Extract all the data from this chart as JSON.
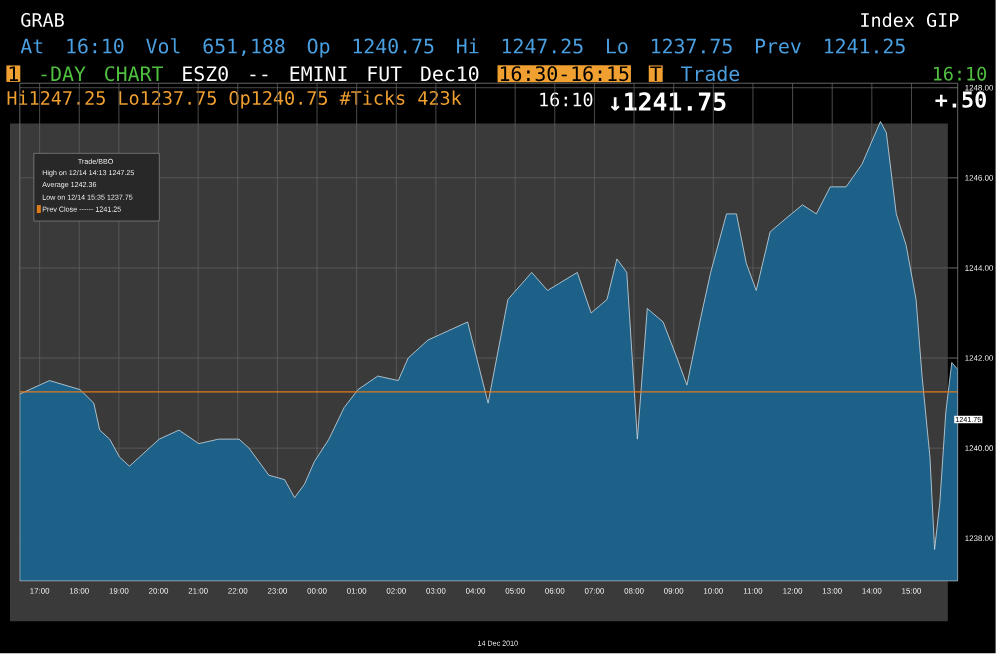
{
  "chart_data": {
    "type": "area",
    "x": [
      "2010-12-13T16:30",
      "2010-12-13T17:15",
      "2010-12-13T18:01",
      "2010-12-13T18:22",
      "2010-12-13T18:31",
      "2010-12-13T18:46",
      "2010-12-13T19:01",
      "2010-12-13T19:16",
      "2010-12-13T19:31",
      "2010-12-13T20:01",
      "2010-12-13T20:31",
      "2010-12-13T21:01",
      "2010-12-13T21:31",
      "2010-12-13T22:02",
      "2010-12-13T22:17",
      "2010-12-13T22:32",
      "2010-12-13T22:47",
      "2010-12-13T23:11",
      "2010-12-13T23:26",
      "2010-12-13T23:41",
      "2010-12-13T23:56",
      "2010-12-14T00:18",
      "2010-12-14T00:41",
      "2010-12-14T01:02",
      "2010-12-14T01:32",
      "2010-12-14T02:03",
      "2010-12-14T02:18",
      "2010-12-14T02:48",
      "2010-12-14T03:18",
      "2010-12-14T03:48",
      "2010-12-14T04:19",
      "2010-12-14T04:49",
      "2010-12-14T05:25",
      "2010-12-14T05:49",
      "2010-12-14T06:34",
      "2010-12-14T06:55",
      "2010-12-14T07:19",
      "2010-12-14T07:34",
      "2010-12-14T07:49",
      "2010-12-14T08:05",
      "2010-12-14T08:20",
      "2010-12-14T08:44",
      "2010-12-14T09:05",
      "2010-12-14T09:20",
      "2010-12-14T09:41",
      "2010-12-14T09:56",
      "2010-12-14T10:20",
      "2010-12-14T10:35",
      "2010-12-14T10:50",
      "2010-12-14T11:05",
      "2010-12-14T11:26",
      "2010-12-14T11:50",
      "2010-12-14T12:15",
      "2010-12-14T12:36",
      "2010-12-14T12:57",
      "2010-12-14T13:21",
      "2010-12-14T13:45",
      "2010-12-14T14:13",
      "2010-12-14T14:22",
      "2010-12-14T14:37",
      "2010-12-14T14:52",
      "2010-12-14T15:07",
      "2010-12-14T15:16",
      "2010-12-14T15:28",
      "2010-12-14T15:35",
      "2010-12-14T15:43",
      "2010-12-14T15:52",
      "2010-12-14T16:01",
      "2010-12-14T16:10"
    ],
    "series": [
      {
        "color": "#1d6088",
        "values": [
          1241.2,
          1241.5,
          1241.3,
          1241.0,
          1240.4,
          1240.2,
          1239.8,
          1239.6,
          1239.8,
          1240.2,
          1240.4,
          1240.1,
          1240.2,
          1240.2,
          1240.0,
          1239.7,
          1239.4,
          1239.3,
          1238.9,
          1239.2,
          1239.7,
          1240.2,
          1240.9,
          1241.3,
          1241.6,
          1241.5,
          1242.0,
          1242.4,
          1242.6,
          1242.8,
          1241.0,
          1243.3,
          1243.9,
          1243.5,
          1243.9,
          1243.0,
          1243.3,
          1244.2,
          1243.9,
          1240.2,
          1243.1,
          1242.8,
          1242.0,
          1241.4,
          1242.9,
          1243.9,
          1245.2,
          1245.2,
          1244.1,
          1243.5,
          1244.8,
          1245.1,
          1245.4,
          1245.2,
          1245.8,
          1245.8,
          1246.3,
          1247.25,
          1247.0,
          1245.2,
          1244.5,
          1243.3,
          1241.6,
          1239.8,
          1237.75,
          1238.8,
          1240.8,
          1241.9,
          1241.75
        ]
      }
    ],
    "xlim": [
      "2010-12-13T16:30",
      "2010-12-14T16:10"
    ],
    "xticks": [
      {
        "value": "2010-12-13T17:00",
        "label": "17:00"
      },
      {
        "value": "2010-12-13T18:00",
        "label": "18:00"
      },
      {
        "value": "2010-12-13T19:00",
        "label": "19:00"
      },
      {
        "value": "2010-12-13T20:00",
        "label": "20:00"
      },
      {
        "value": "2010-12-13T21:00",
        "label": "21:00"
      },
      {
        "value": "2010-12-13T22:00",
        "label": "22:00"
      },
      {
        "value": "2010-12-13T23:00",
        "label": "23:00"
      },
      {
        "value": "2010-12-14T00:00",
        "label": "00:00"
      },
      {
        "value": "2010-12-14T01:00",
        "label": "01:00"
      },
      {
        "value": "2010-12-14T02:00",
        "label": "02:00"
      },
      {
        "value": "2010-12-14T03:00",
        "label": "03:00"
      },
      {
        "value": "2010-12-14T04:00",
        "label": "04:00"
      },
      {
        "value": "2010-12-14T05:00",
        "label": "05:00"
      },
      {
        "value": "2010-12-14T06:00",
        "label": "06:00"
      },
      {
        "value": "2010-12-14T07:00",
        "label": "07:00"
      },
      {
        "value": "2010-12-14T08:00",
        "label": "08:00"
      },
      {
        "value": "2010-12-14T09:00",
        "label": "09:00"
      },
      {
        "value": "2010-12-14T10:00",
        "label": "10:00"
      },
      {
        "value": "2010-12-14T11:00",
        "label": "11:00"
      },
      {
        "value": "2010-12-14T12:00",
        "label": "12:00"
      },
      {
        "value": "2010-12-14T13:00",
        "label": "13:00"
      },
      {
        "value": "2010-12-14T14:00",
        "label": "14:00"
      },
      {
        "value": "2010-12-14T15:00",
        "label": "15:00"
      }
    ],
    "ylim": [
      1237.05,
      1248.1
    ],
    "yticks": [
      {
        "value": 1238,
        "label": "1238.00"
      },
      {
        "value": 1240,
        "label": "1240.00"
      },
      {
        "value": 1242,
        "label": "1242.00"
      },
      {
        "value": 1244,
        "label": "1244.00"
      },
      {
        "value": 1246,
        "label": "1246.00"
      },
      {
        "value": 1248,
        "label": "1248.00"
      }
    ],
    "grid": true,
    "ref_lines": [
      {
        "axis": "y",
        "value": 1241.25,
        "label": "Prev Close ------ 1241.25",
        "color": "#e07b1a"
      }
    ],
    "annotations": [
      "GRAB",
      "Index GIP",
      "At 16:10 Vol 651,188 Op 1240.75   Hi 1247.25   Lo 1237.75   Prev 1241.25",
      "1",
      "-DAY CHART",
      "ESZ0 -- EMINI FUT  Dec10",
      "16:30-16:15",
      "T",
      "Trade",
      "16:10",
      "Hi1247.25 Lo1237.75 Op1240.75 #Ticks 423k",
      "16:10",
      "↓1241.75",
      "+.50",
      "Trade/BBO",
      "High on 12/14 14:13 1247.25",
      "Average 1242.36",
      "Low on 12/14 15:35 1237.75",
      "14 Dec 2010",
      "1241.75"
    ]
  }
}
